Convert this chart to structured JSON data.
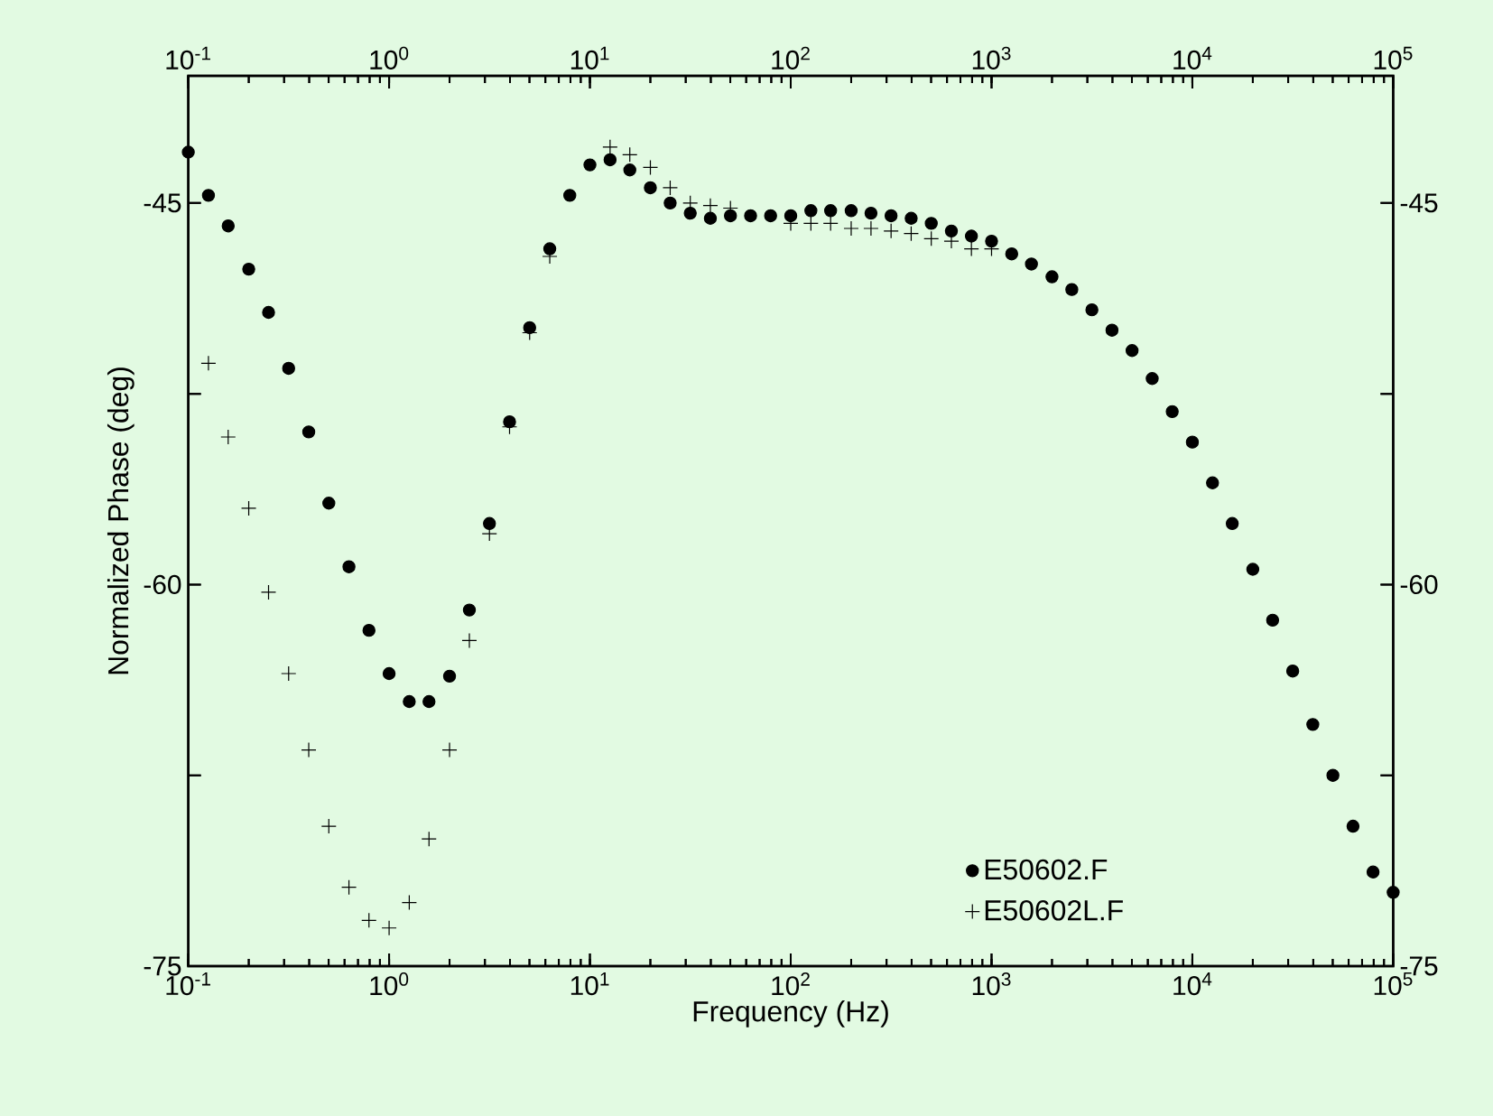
{
  "chart_data": {
    "type": "scatter",
    "xlabel": "Frequency (Hz)",
    "ylabel": "Normalized Phase (deg)",
    "log": "x",
    "legend": "bottom right",
    "grid": false,
    "xlim": [
      0.1,
      100000
    ],
    "ylim": [
      -75,
      -40
    ],
    "xticks": [
      {
        "value": 0.1,
        "label": "10$^{-1}$"
      },
      {
        "value": 1,
        "label": "10$^{0}$"
      },
      {
        "value": 10,
        "label": "10$^{1}$"
      },
      {
        "value": 100,
        "label": "10$^{2}$"
      },
      {
        "value": 1000,
        "label": "10$^{3}$"
      },
      {
        "value": 10000,
        "label": "10$^{4}$"
      },
      {
        "value": 100000,
        "label": "10$^{5}$"
      }
    ],
    "yticks": [
      -45,
      {
        "value": -52.5,
        "label": null
      },
      -60,
      {
        "value": -67.5,
        "label": null
      },
      -75
    ],
    "y2lim": [
      -75,
      -40
    ],
    "y2ticks": [
      -45,
      {
        "value": -52.5,
        "label": null
      },
      -60,
      {
        "value": -67.5,
        "label": null
      },
      -75
    ],
    "x": [
      0.1,
      0.126,
      0.158,
      0.2,
      0.251,
      0.316,
      0.398,
      0.501,
      0.631,
      0.794,
      1,
      1.26,
      1.58,
      2,
      2.51,
      3.16,
      3.98,
      5.01,
      6.31,
      7.94,
      10,
      12.6,
      15.8,
      20,
      25.1,
      31.6,
      39.8,
      50.1,
      63.1,
      79.4,
      100,
      126,
      158,
      200,
      251,
      316,
      398,
      501,
      631,
      794,
      1000,
      1260,
      1580,
      2000,
      2510,
      3160,
      3980,
      5010,
      6310,
      7940,
      10000,
      12600,
      15800,
      20000,
      25100,
      31600,
      39800,
      50100,
      63100,
      79400,
      100000
    ],
    "series": [
      {
        "name": "E50602.F",
        "color": "#000000",
        "marker": "circle",
        "values": [
          -43.0,
          -44.7,
          -45.9,
          -47.6,
          -49.3,
          -51.5,
          -54.0,
          -56.8,
          -59.3,
          -61.8,
          -63.5,
          -64.6,
          -64.6,
          -63.6,
          -61.0,
          -57.6,
          -53.6,
          -49.9,
          -46.8,
          -44.7,
          -43.5,
          -43.3,
          -43.7,
          -44.4,
          -45.0,
          -45.4,
          -45.6,
          -45.5,
          -45.5,
          -45.5,
          -45.5,
          -45.3,
          -45.3,
          -45.3,
          -45.4,
          -45.5,
          -45.6,
          -45.8,
          -46.1,
          -46.3,
          -46.5,
          -47.0,
          -47.4,
          -47.9,
          -48.4,
          -49.2,
          -50.0,
          -50.8,
          -51.9,
          -53.2,
          -54.4,
          -56.0,
          -57.6,
          -59.4,
          -61.4,
          -63.4,
          -65.5,
          -67.5,
          -69.5,
          -71.3,
          -72.1
        ]
      },
      {
        "name": "E50602L.F",
        "color": "#000000",
        "marker": "cross",
        "values": [
          null,
          -51.3,
          -54.2,
          -57.0,
          -60.3,
          -63.5,
          -66.5,
          -69.5,
          -71.9,
          -73.2,
          -73.5,
          -72.5,
          -70.0,
          -66.5,
          -62.2,
          -58.0,
          -53.8,
          -50.1,
          -47.1,
          null,
          null,
          -42.8,
          -43.1,
          -43.6,
          -44.4,
          -45.0,
          -45.1,
          -45.2,
          null,
          null,
          -45.8,
          -45.8,
          -45.8,
          -46.0,
          -46.0,
          -46.1,
          -46.2,
          -46.4,
          -46.5,
          -46.8,
          -46.8,
          null,
          null,
          null,
          null,
          null,
          null,
          null,
          null,
          null,
          null,
          null,
          null,
          null,
          null,
          null,
          null,
          null,
          null,
          null,
          null
        ]
      }
    ]
  }
}
